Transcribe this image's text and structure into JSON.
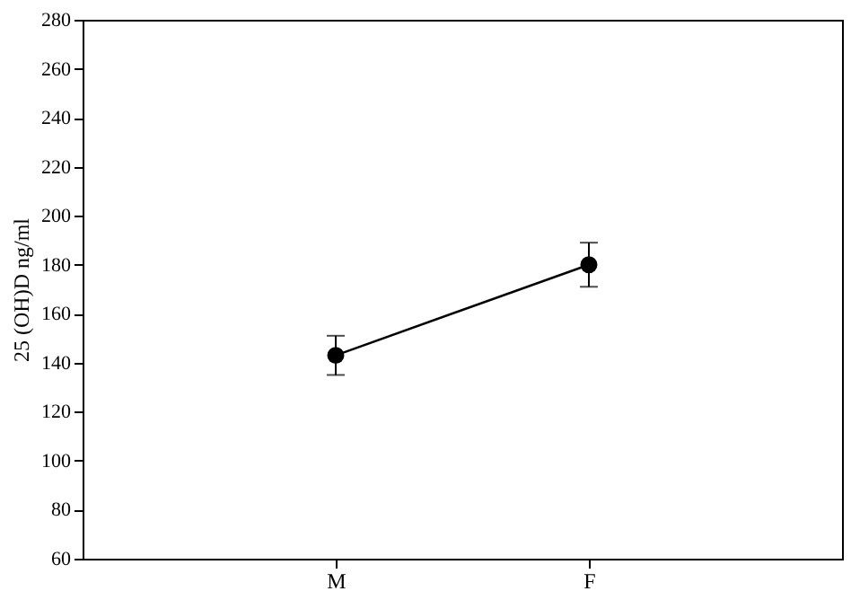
{
  "chart_data": {
    "type": "line",
    "ylabel": "25 (OH)D ng/ml",
    "categories": [
      "M",
      "F"
    ],
    "series": [
      {
        "color": "#000000",
        "values": [
          143,
          180
        ],
        "errors": [
          8,
          9
        ]
      }
    ],
    "ylim": [
      60,
      280
    ],
    "yticks": [
      60,
      80,
      100,
      120,
      140,
      160,
      180,
      200,
      220,
      240,
      260,
      280
    ],
    "marker": "circle",
    "grid": false
  }
}
